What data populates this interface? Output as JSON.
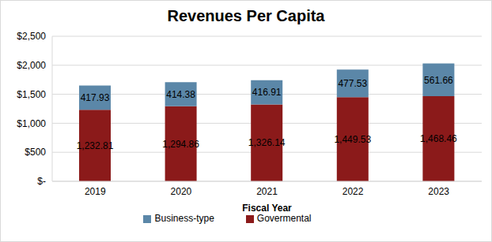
{
  "chart_data": {
    "type": "bar",
    "title": "Revenues Per Capita",
    "x_label": "Fiscal Year",
    "categories": [
      "2019",
      "2020",
      "2021",
      "2022",
      "2023"
    ],
    "series": [
      {
        "name": "Govermental",
        "color": "#8B1A1A",
        "values": [
          1232.81,
          1294.86,
          1326.14,
          1449.53,
          1468.46
        ],
        "value_labels": [
          "1,232.81",
          "1,294.86",
          "1,326.14",
          "1,449.53",
          "1,468.46"
        ]
      },
      {
        "name": "Business-type",
        "color": "#5B87A8",
        "values": [
          417.93,
          414.38,
          416.91,
          477.53,
          561.66
        ]
      }
    ],
    "ylim": [
      0,
      2500
    ],
    "yticks": [
      {
        "value": 0,
        "label": "$-"
      },
      {
        "value": 500,
        "label": "$500"
      },
      {
        "value": 1000,
        "label": "$1,000"
      },
      {
        "value": 1500,
        "label": "$1,500"
      },
      {
        "value": 2000,
        "label": "$2,000"
      },
      {
        "value": 2500,
        "label": "$2,500"
      }
    ],
    "grid": true,
    "stacked": true,
    "data_labels": true,
    "legend": "bottom"
  }
}
